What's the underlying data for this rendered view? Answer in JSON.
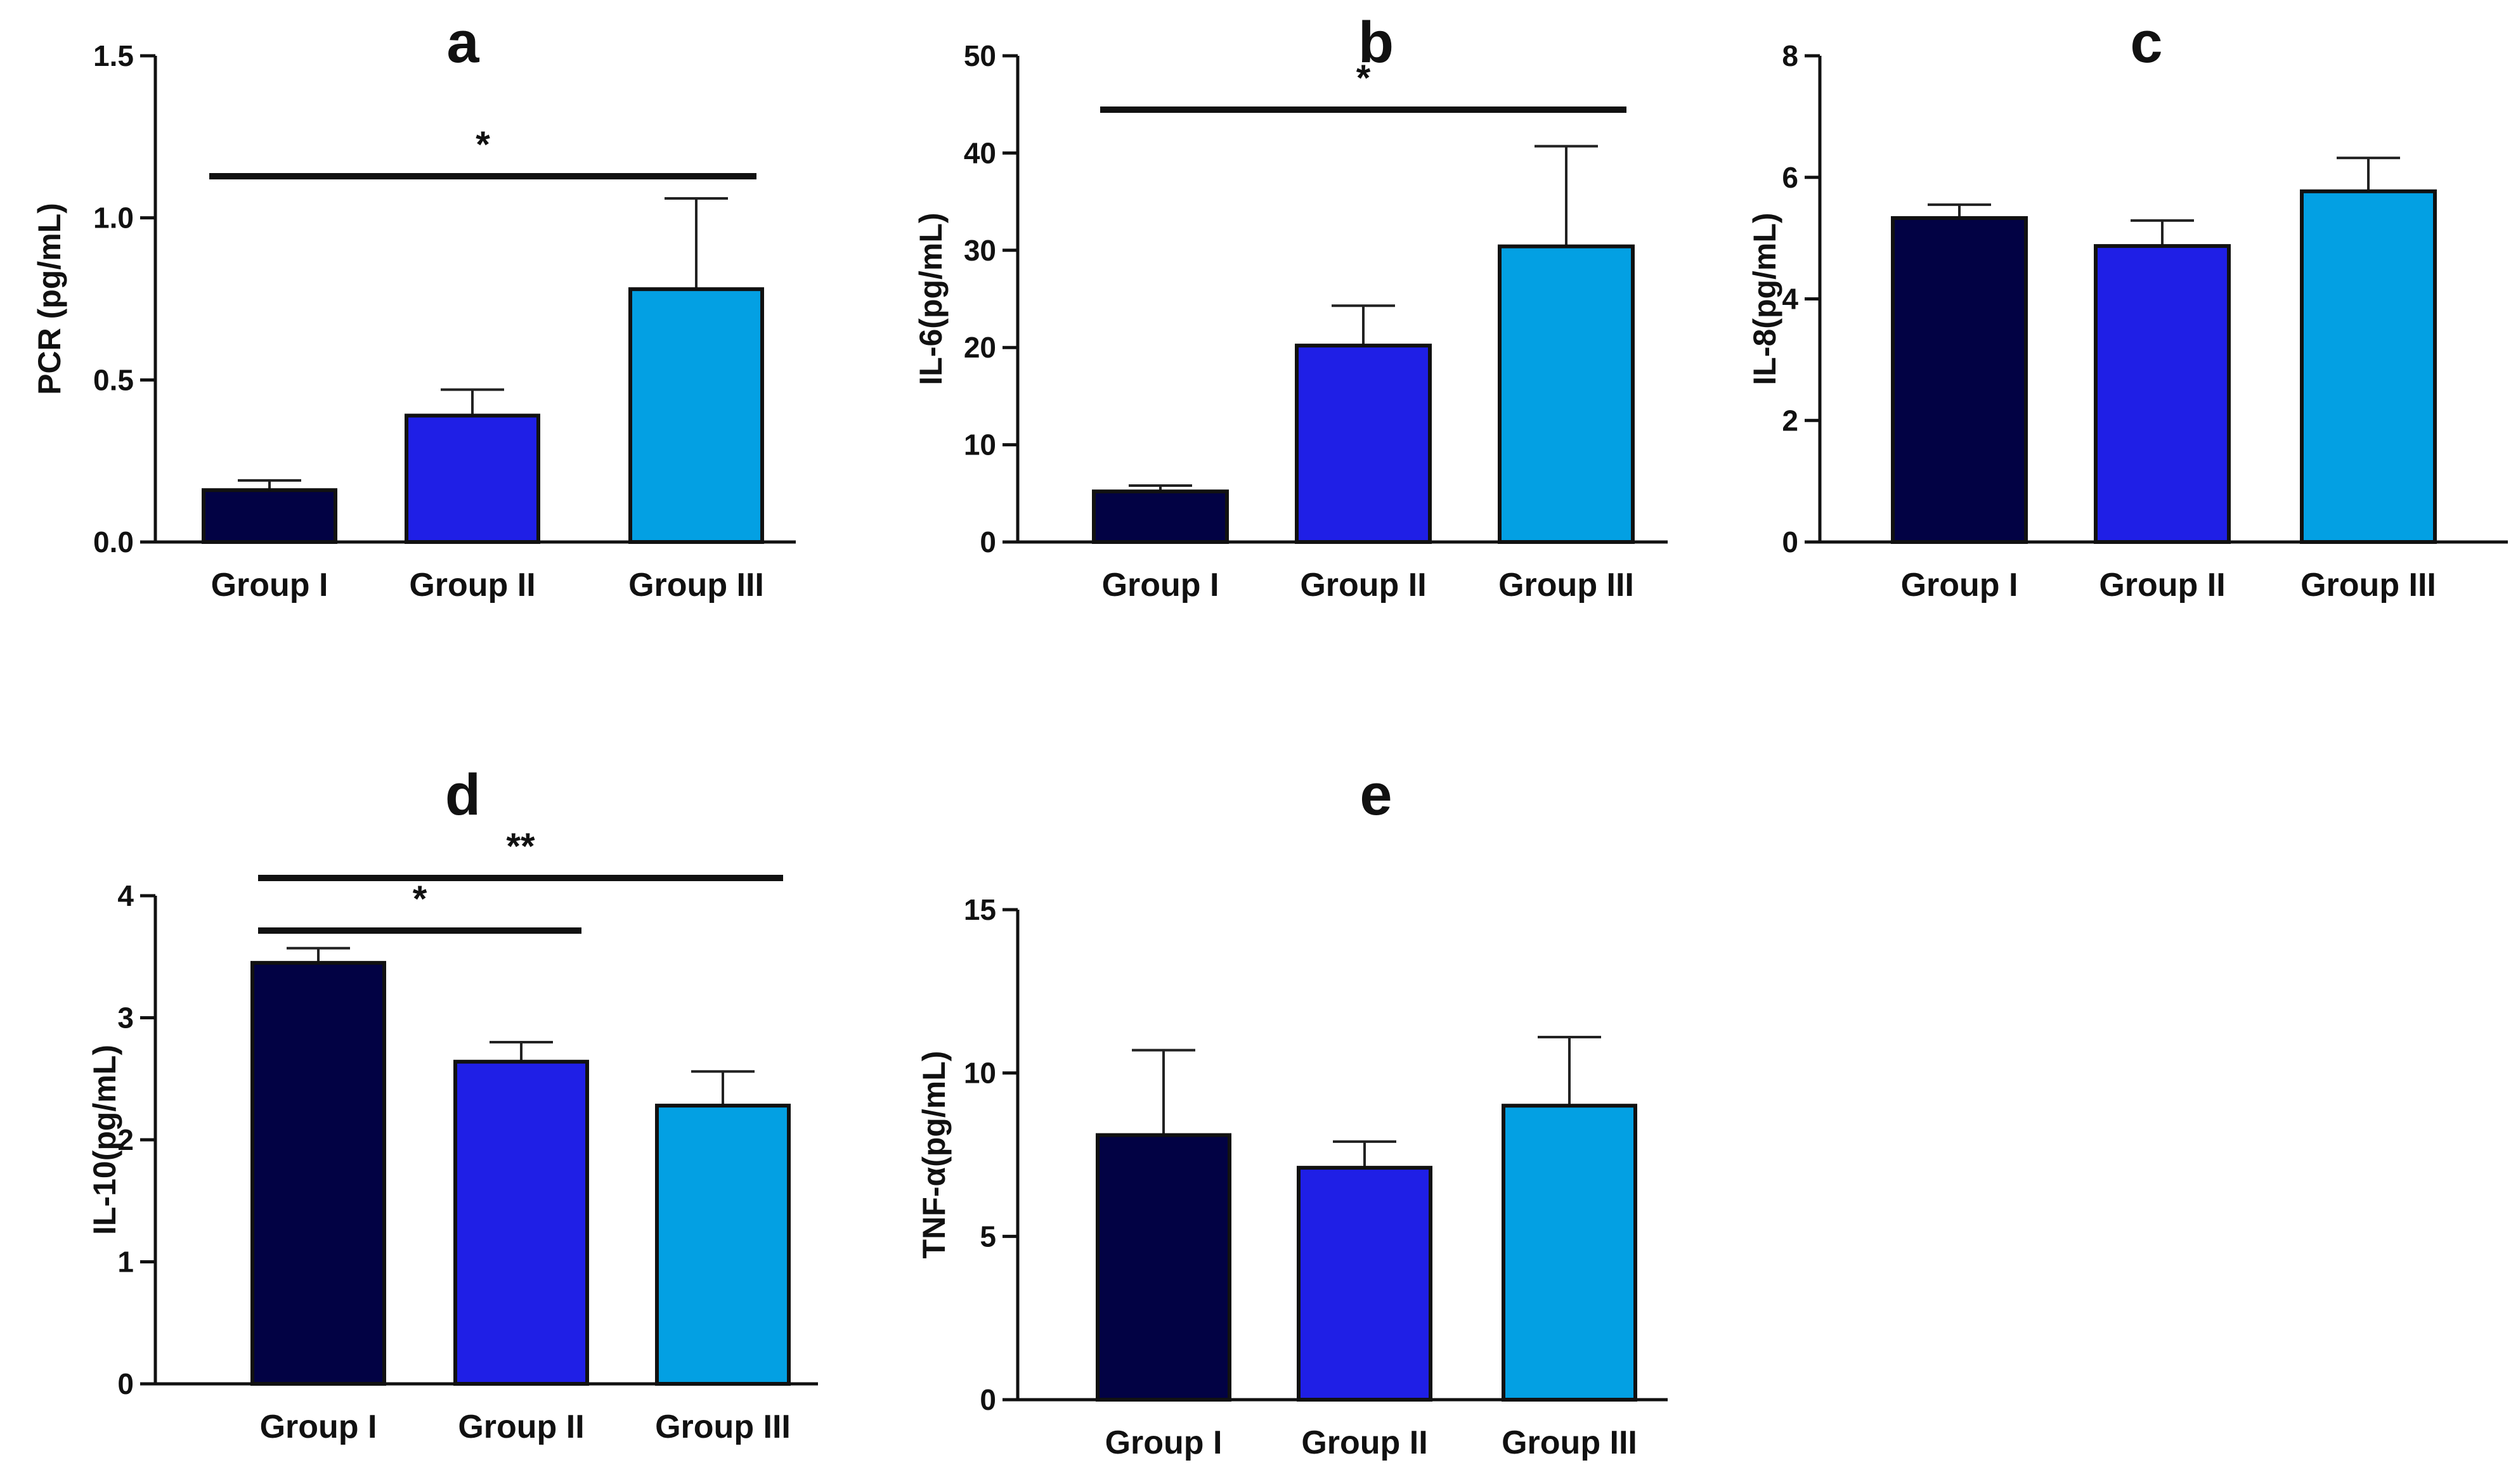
{
  "figure": {
    "colors": {
      "Group I": "#020244",
      "Group II": "#1f1fe6",
      "Group III": "#03a0e3"
    }
  },
  "chart_data": [
    {
      "type": "bar",
      "title": "a",
      "ylabel": "PCR (pg/mL)",
      "xlabel": "",
      "categories": [
        "Group I",
        "Group II",
        "Group III"
      ],
      "values": [
        0.16,
        0.39,
        0.78
      ],
      "errors": [
        0.03,
        0.08,
        0.28
      ],
      "ylim": [
        0,
        1.5
      ],
      "yticks": [
        0.0,
        0.5,
        1.0,
        1.5
      ],
      "ytick_labels": [
        "0.0",
        "0.5",
        "1.0",
        "1.5"
      ],
      "significance": [
        {
          "from": 0,
          "to": 2,
          "label": "*"
        }
      ]
    },
    {
      "type": "bar",
      "title": "b",
      "ylabel": "IL-6(pg/mL)",
      "xlabel": "",
      "categories": [
        "Group I",
        "Group II",
        "Group III"
      ],
      "values": [
        5.2,
        20.2,
        30.4
      ],
      "errors": [
        0.6,
        4.1,
        10.3
      ],
      "ylim": [
        0,
        50
      ],
      "yticks": [
        0,
        10,
        20,
        30,
        40,
        50
      ],
      "ytick_labels": [
        "0",
        "10",
        "20",
        "30",
        "40",
        "50"
      ],
      "significance": [
        {
          "from": 0,
          "to": 2,
          "label": "*"
        }
      ]
    },
    {
      "type": "bar",
      "title": "c",
      "ylabel": "IL-8(pg/mL)",
      "xlabel": "",
      "categories": [
        "Group I",
        "Group II",
        "Group III"
      ],
      "values": [
        5.33,
        4.87,
        5.77
      ],
      "errors": [
        0.22,
        0.42,
        0.55
      ],
      "ylim": [
        0,
        8
      ],
      "yticks": [
        0,
        2,
        4,
        6,
        8
      ],
      "ytick_labels": [
        "0",
        "2",
        "4",
        "6",
        "8"
      ],
      "significance": []
    },
    {
      "type": "bar",
      "title": "d",
      "ylabel": "IL-10(pg/mL)",
      "xlabel": "",
      "categories": [
        "Group I",
        "Group II",
        "Group III"
      ],
      "values": [
        3.45,
        2.64,
        2.28
      ],
      "errors": [
        0.12,
        0.16,
        0.28
      ],
      "ylim": [
        0,
        4
      ],
      "yticks": [
        0,
        1,
        2,
        3,
        4
      ],
      "ytick_labels": [
        "0",
        "1",
        "2",
        "3",
        "4"
      ],
      "significance": [
        {
          "from": 0,
          "to": 2,
          "label": "**"
        },
        {
          "from": 0,
          "to": 1,
          "label": "*"
        }
      ]
    },
    {
      "type": "bar",
      "title": "e",
      "ylabel": "TNF-α(pg/mL)",
      "xlabel": "",
      "categories": [
        "Group I",
        "Group II",
        "Group III"
      ],
      "values": [
        8.1,
        7.1,
        9.0
      ],
      "errors": [
        2.6,
        0.8,
        2.1
      ],
      "ylim": [
        0,
        15
      ],
      "yticks": [
        0,
        5,
        10,
        15
      ],
      "ytick_labels": [
        "0",
        "5",
        "10",
        "15"
      ],
      "significance": []
    }
  ]
}
